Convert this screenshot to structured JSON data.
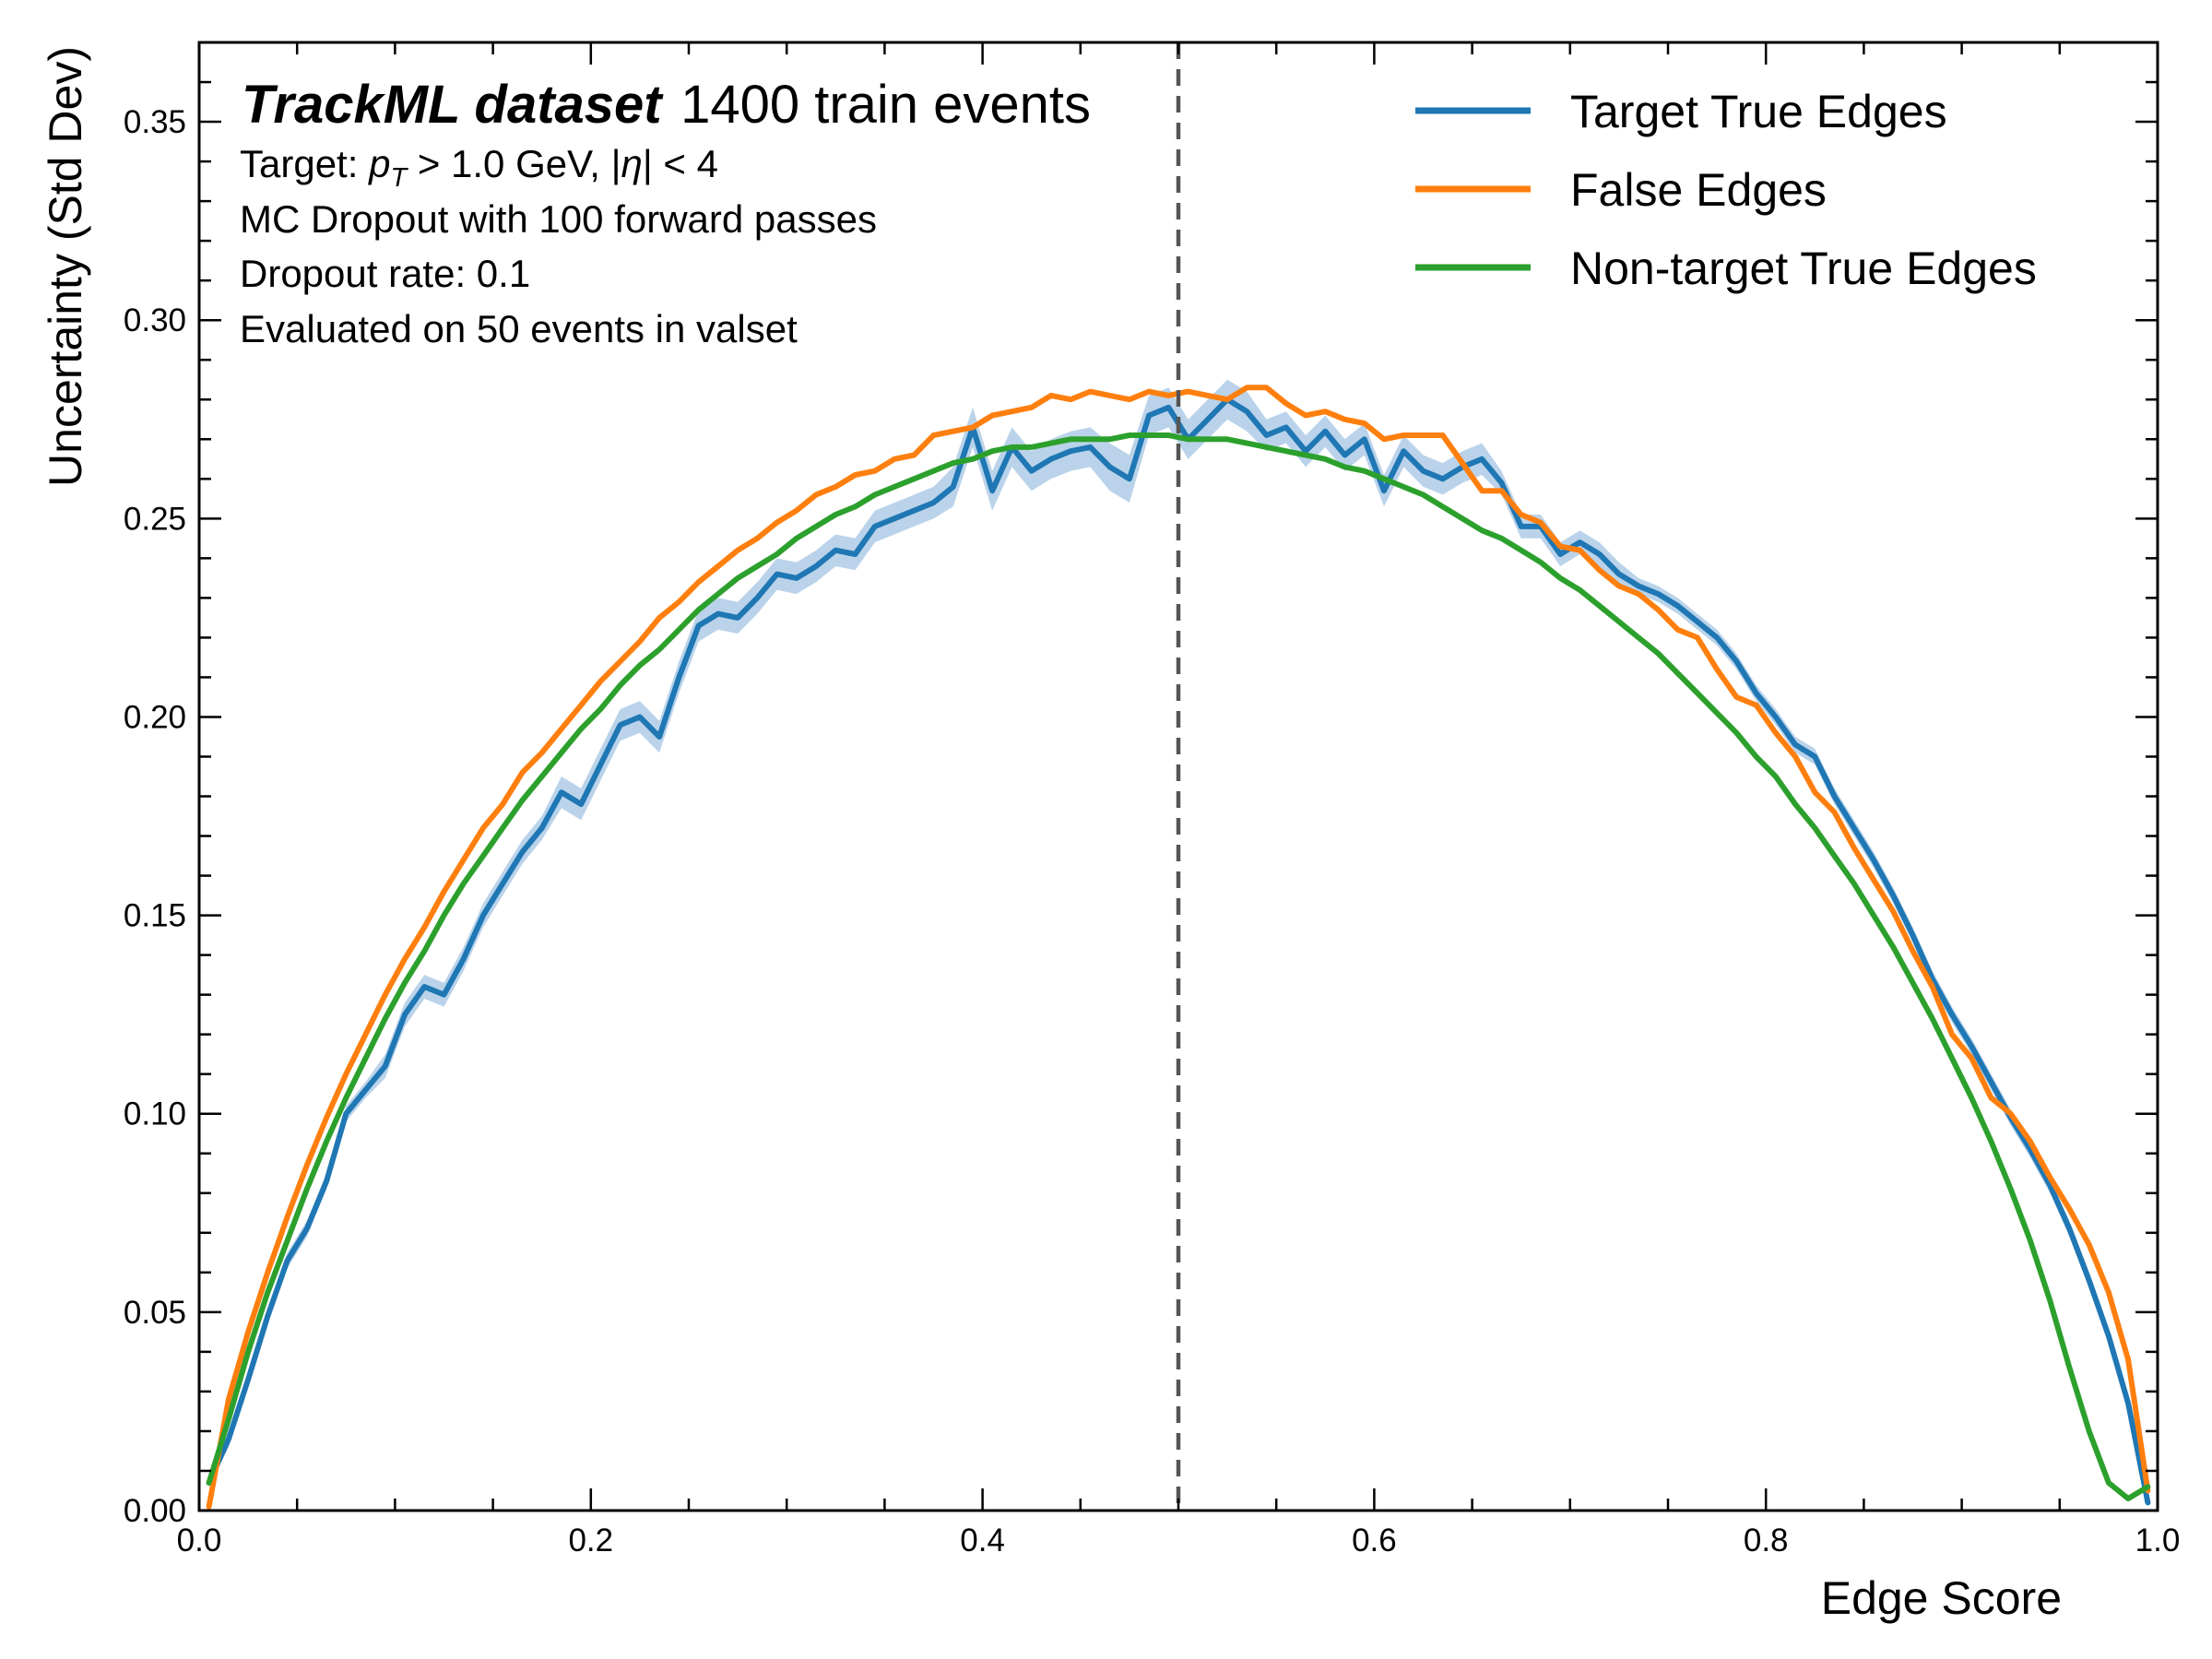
{
  "chart_data": {
    "type": "line",
    "title_bold": "TrackML dataset",
    "title_rest": "1400 train events",
    "annotations": [
      "Target: p_T > 1.0 GeV, |η| < 4",
      "MC Dropout with 100 forward passes",
      "Dropout rate: 0.1",
      "Evaluated on 50 events in valset"
    ],
    "xlabel": "Edge Score",
    "ylabel": "Uncertainty (Std Dev)",
    "xlim": [
      0.0,
      1.0
    ],
    "ylim": [
      0.0,
      0.37
    ],
    "xticks": [
      "0.0",
      "0.2",
      "0.4",
      "0.6",
      "0.8",
      "1.0"
    ],
    "yticks": [
      "0.00",
      "0.05",
      "0.10",
      "0.15",
      "0.20",
      "0.25",
      "0.30",
      "0.35"
    ],
    "vline_x": 0.5,
    "vline_color": "#555555",
    "legend_position": "top-right",
    "series": [
      {
        "name": "Target True Edges",
        "color": "#1f77b4",
        "band_color": "#aecbe6",
        "x": [
          0.005,
          0.015,
          0.025,
          0.035,
          0.045,
          0.055,
          0.065,
          0.075,
          0.085,
          0.095,
          0.105,
          0.115,
          0.125,
          0.135,
          0.145,
          0.155,
          0.165,
          0.175,
          0.185,
          0.195,
          0.205,
          0.215,
          0.225,
          0.235,
          0.245,
          0.255,
          0.265,
          0.275,
          0.285,
          0.295,
          0.305,
          0.315,
          0.325,
          0.335,
          0.345,
          0.355,
          0.365,
          0.375,
          0.385,
          0.395,
          0.405,
          0.415,
          0.425,
          0.435,
          0.445,
          0.455,
          0.465,
          0.475,
          0.485,
          0.495,
          0.505,
          0.515,
          0.525,
          0.535,
          0.545,
          0.555,
          0.565,
          0.575,
          0.585,
          0.595,
          0.605,
          0.615,
          0.625,
          0.635,
          0.645,
          0.655,
          0.665,
          0.675,
          0.685,
          0.695,
          0.705,
          0.715,
          0.725,
          0.735,
          0.745,
          0.755,
          0.765,
          0.775,
          0.785,
          0.795,
          0.805,
          0.815,
          0.825,
          0.835,
          0.845,
          0.855,
          0.865,
          0.875,
          0.885,
          0.895,
          0.905,
          0.915,
          0.925,
          0.935,
          0.945,
          0.955,
          0.965,
          0.975,
          0.985,
          0.995
        ],
        "y": [
          0.007,
          0.018,
          0.033,
          0.049,
          0.063,
          0.071,
          0.083,
          0.1,
          0.106,
          0.112,
          0.125,
          0.132,
          0.13,
          0.139,
          0.15,
          0.158,
          0.166,
          0.172,
          0.181,
          0.178,
          0.188,
          0.198,
          0.2,
          0.195,
          0.21,
          0.223,
          0.226,
          0.225,
          0.23,
          0.236,
          0.235,
          0.238,
          0.242,
          0.241,
          0.248,
          0.25,
          0.252,
          0.254,
          0.258,
          0.273,
          0.257,
          0.268,
          0.262,
          0.265,
          0.267,
          0.268,
          0.263,
          0.26,
          0.276,
          0.278,
          0.27,
          0.275,
          0.28,
          0.277,
          0.271,
          0.273,
          0.267,
          0.272,
          0.266,
          0.27,
          0.257,
          0.267,
          0.262,
          0.26,
          0.263,
          0.265,
          0.259,
          0.248,
          0.248,
          0.241,
          0.244,
          0.241,
          0.236,
          0.233,
          0.231,
          0.228,
          0.224,
          0.22,
          0.214,
          0.206,
          0.2,
          0.193,
          0.19,
          0.18,
          0.172,
          0.164,
          0.155,
          0.145,
          0.134,
          0.125,
          0.117,
          0.108,
          0.099,
          0.091,
          0.082,
          0.071,
          0.058,
          0.044,
          0.027,
          0.002
        ],
        "band": [
          0.001,
          0.002,
          0.002,
          0.002,
          0.002,
          0.002,
          0.002,
          0.002,
          0.002,
          0.003,
          0.003,
          0.003,
          0.003,
          0.003,
          0.003,
          0.003,
          0.003,
          0.003,
          0.004,
          0.004,
          0.004,
          0.004,
          0.004,
          0.004,
          0.004,
          0.004,
          0.004,
          0.004,
          0.004,
          0.004,
          0.004,
          0.004,
          0.004,
          0.004,
          0.004,
          0.004,
          0.004,
          0.004,
          0.005,
          0.005,
          0.005,
          0.005,
          0.005,
          0.005,
          0.005,
          0.005,
          0.006,
          0.006,
          0.005,
          0.005,
          0.005,
          0.005,
          0.005,
          0.005,
          0.004,
          0.004,
          0.004,
          0.004,
          0.004,
          0.004,
          0.004,
          0.004,
          0.004,
          0.004,
          0.004,
          0.004,
          0.003,
          0.003,
          0.003,
          0.003,
          0.003,
          0.003,
          0.003,
          0.002,
          0.002,
          0.002,
          0.002,
          0.002,
          0.002,
          0.002,
          0.002,
          0.002,
          0.002,
          0.002,
          0.002,
          0.002,
          0.002,
          0.002,
          0.002,
          0.002,
          0.002,
          0.002,
          0.002,
          0.002,
          0.002,
          0.002,
          0.002,
          0.002,
          0.002,
          0.001
        ]
      },
      {
        "name": "False Edges",
        "color": "#ff7f0e",
        "x": [
          0.005,
          0.015,
          0.025,
          0.035,
          0.045,
          0.055,
          0.065,
          0.075,
          0.085,
          0.095,
          0.105,
          0.115,
          0.125,
          0.135,
          0.145,
          0.155,
          0.165,
          0.175,
          0.185,
          0.195,
          0.205,
          0.215,
          0.225,
          0.235,
          0.245,
          0.255,
          0.265,
          0.275,
          0.285,
          0.295,
          0.305,
          0.315,
          0.325,
          0.335,
          0.345,
          0.355,
          0.365,
          0.375,
          0.385,
          0.395,
          0.405,
          0.415,
          0.425,
          0.435,
          0.445,
          0.455,
          0.465,
          0.475,
          0.485,
          0.495,
          0.505,
          0.515,
          0.525,
          0.535,
          0.545,
          0.555,
          0.565,
          0.575,
          0.585,
          0.595,
          0.605,
          0.615,
          0.625,
          0.635,
          0.645,
          0.655,
          0.665,
          0.675,
          0.685,
          0.695,
          0.705,
          0.715,
          0.725,
          0.735,
          0.745,
          0.755,
          0.765,
          0.775,
          0.785,
          0.795,
          0.805,
          0.815,
          0.825,
          0.835,
          0.845,
          0.855,
          0.865,
          0.875,
          0.885,
          0.895,
          0.905,
          0.915,
          0.925,
          0.935,
          0.945,
          0.955,
          0.965,
          0.975,
          0.985,
          0.995
        ],
        "y": [
          0.001,
          0.028,
          0.045,
          0.06,
          0.074,
          0.087,
          0.099,
          0.11,
          0.12,
          0.13,
          0.139,
          0.147,
          0.156,
          0.164,
          0.172,
          0.178,
          0.186,
          0.191,
          0.197,
          0.203,
          0.209,
          0.214,
          0.219,
          0.225,
          0.229,
          0.234,
          0.238,
          0.242,
          0.245,
          0.249,
          0.252,
          0.256,
          0.258,
          0.261,
          0.262,
          0.265,
          0.266,
          0.271,
          0.272,
          0.273,
          0.276,
          0.277,
          0.278,
          0.281,
          0.28,
          0.282,
          0.281,
          0.28,
          0.282,
          0.281,
          0.282,
          0.281,
          0.28,
          0.283,
          0.283,
          0.279,
          0.276,
          0.277,
          0.275,
          0.274,
          0.27,
          0.271,
          0.271,
          0.271,
          0.264,
          0.257,
          0.257,
          0.251,
          0.249,
          0.243,
          0.242,
          0.237,
          0.233,
          0.231,
          0.227,
          0.222,
          0.22,
          0.212,
          0.205,
          0.203,
          0.196,
          0.19,
          0.181,
          0.176,
          0.167,
          0.159,
          0.151,
          0.141,
          0.132,
          0.12,
          0.114,
          0.104,
          0.1,
          0.093,
          0.084,
          0.076,
          0.067,
          0.055,
          0.038,
          0.005
        ]
      },
      {
        "name": "Non-target True Edges",
        "color": "#2ca02c",
        "x": [
          0.005,
          0.015,
          0.025,
          0.035,
          0.045,
          0.055,
          0.065,
          0.075,
          0.085,
          0.095,
          0.105,
          0.115,
          0.125,
          0.135,
          0.145,
          0.155,
          0.165,
          0.175,
          0.185,
          0.195,
          0.205,
          0.215,
          0.225,
          0.235,
          0.245,
          0.255,
          0.265,
          0.275,
          0.285,
          0.295,
          0.305,
          0.315,
          0.325,
          0.335,
          0.345,
          0.355,
          0.365,
          0.375,
          0.385,
          0.395,
          0.405,
          0.415,
          0.425,
          0.435,
          0.445,
          0.455,
          0.465,
          0.475,
          0.485,
          0.495,
          0.505,
          0.515,
          0.525,
          0.535,
          0.545,
          0.555,
          0.565,
          0.575,
          0.585,
          0.595,
          0.605,
          0.615,
          0.625,
          0.635,
          0.645,
          0.655,
          0.665,
          0.675,
          0.685,
          0.695,
          0.705,
          0.715,
          0.725,
          0.735,
          0.745,
          0.755,
          0.765,
          0.775,
          0.785,
          0.795,
          0.805,
          0.815,
          0.825,
          0.835,
          0.845,
          0.855,
          0.865,
          0.875,
          0.885,
          0.895,
          0.905,
          0.915,
          0.925,
          0.935,
          0.945,
          0.955,
          0.965,
          0.975,
          0.985,
          0.995
        ],
        "y": [
          0.007,
          0.023,
          0.04,
          0.055,
          0.068,
          0.081,
          0.093,
          0.104,
          0.114,
          0.124,
          0.133,
          0.141,
          0.15,
          0.158,
          0.165,
          0.172,
          0.179,
          0.185,
          0.191,
          0.197,
          0.202,
          0.208,
          0.213,
          0.217,
          0.222,
          0.227,
          0.231,
          0.235,
          0.238,
          0.241,
          0.245,
          0.248,
          0.251,
          0.253,
          0.256,
          0.258,
          0.26,
          0.262,
          0.264,
          0.265,
          0.267,
          0.268,
          0.268,
          0.269,
          0.27,
          0.27,
          0.27,
          0.271,
          0.271,
          0.271,
          0.27,
          0.27,
          0.27,
          0.269,
          0.268,
          0.267,
          0.266,
          0.265,
          0.263,
          0.262,
          0.26,
          0.258,
          0.256,
          0.253,
          0.25,
          0.247,
          0.245,
          0.242,
          0.239,
          0.235,
          0.232,
          0.228,
          0.224,
          0.22,
          0.216,
          0.211,
          0.206,
          0.201,
          0.196,
          0.19,
          0.185,
          0.178,
          0.172,
          0.165,
          0.158,
          0.15,
          0.142,
          0.133,
          0.124,
          0.114,
          0.104,
          0.093,
          0.081,
          0.068,
          0.053,
          0.036,
          0.02,
          0.007,
          0.003,
          0.006
        ]
      }
    ]
  }
}
